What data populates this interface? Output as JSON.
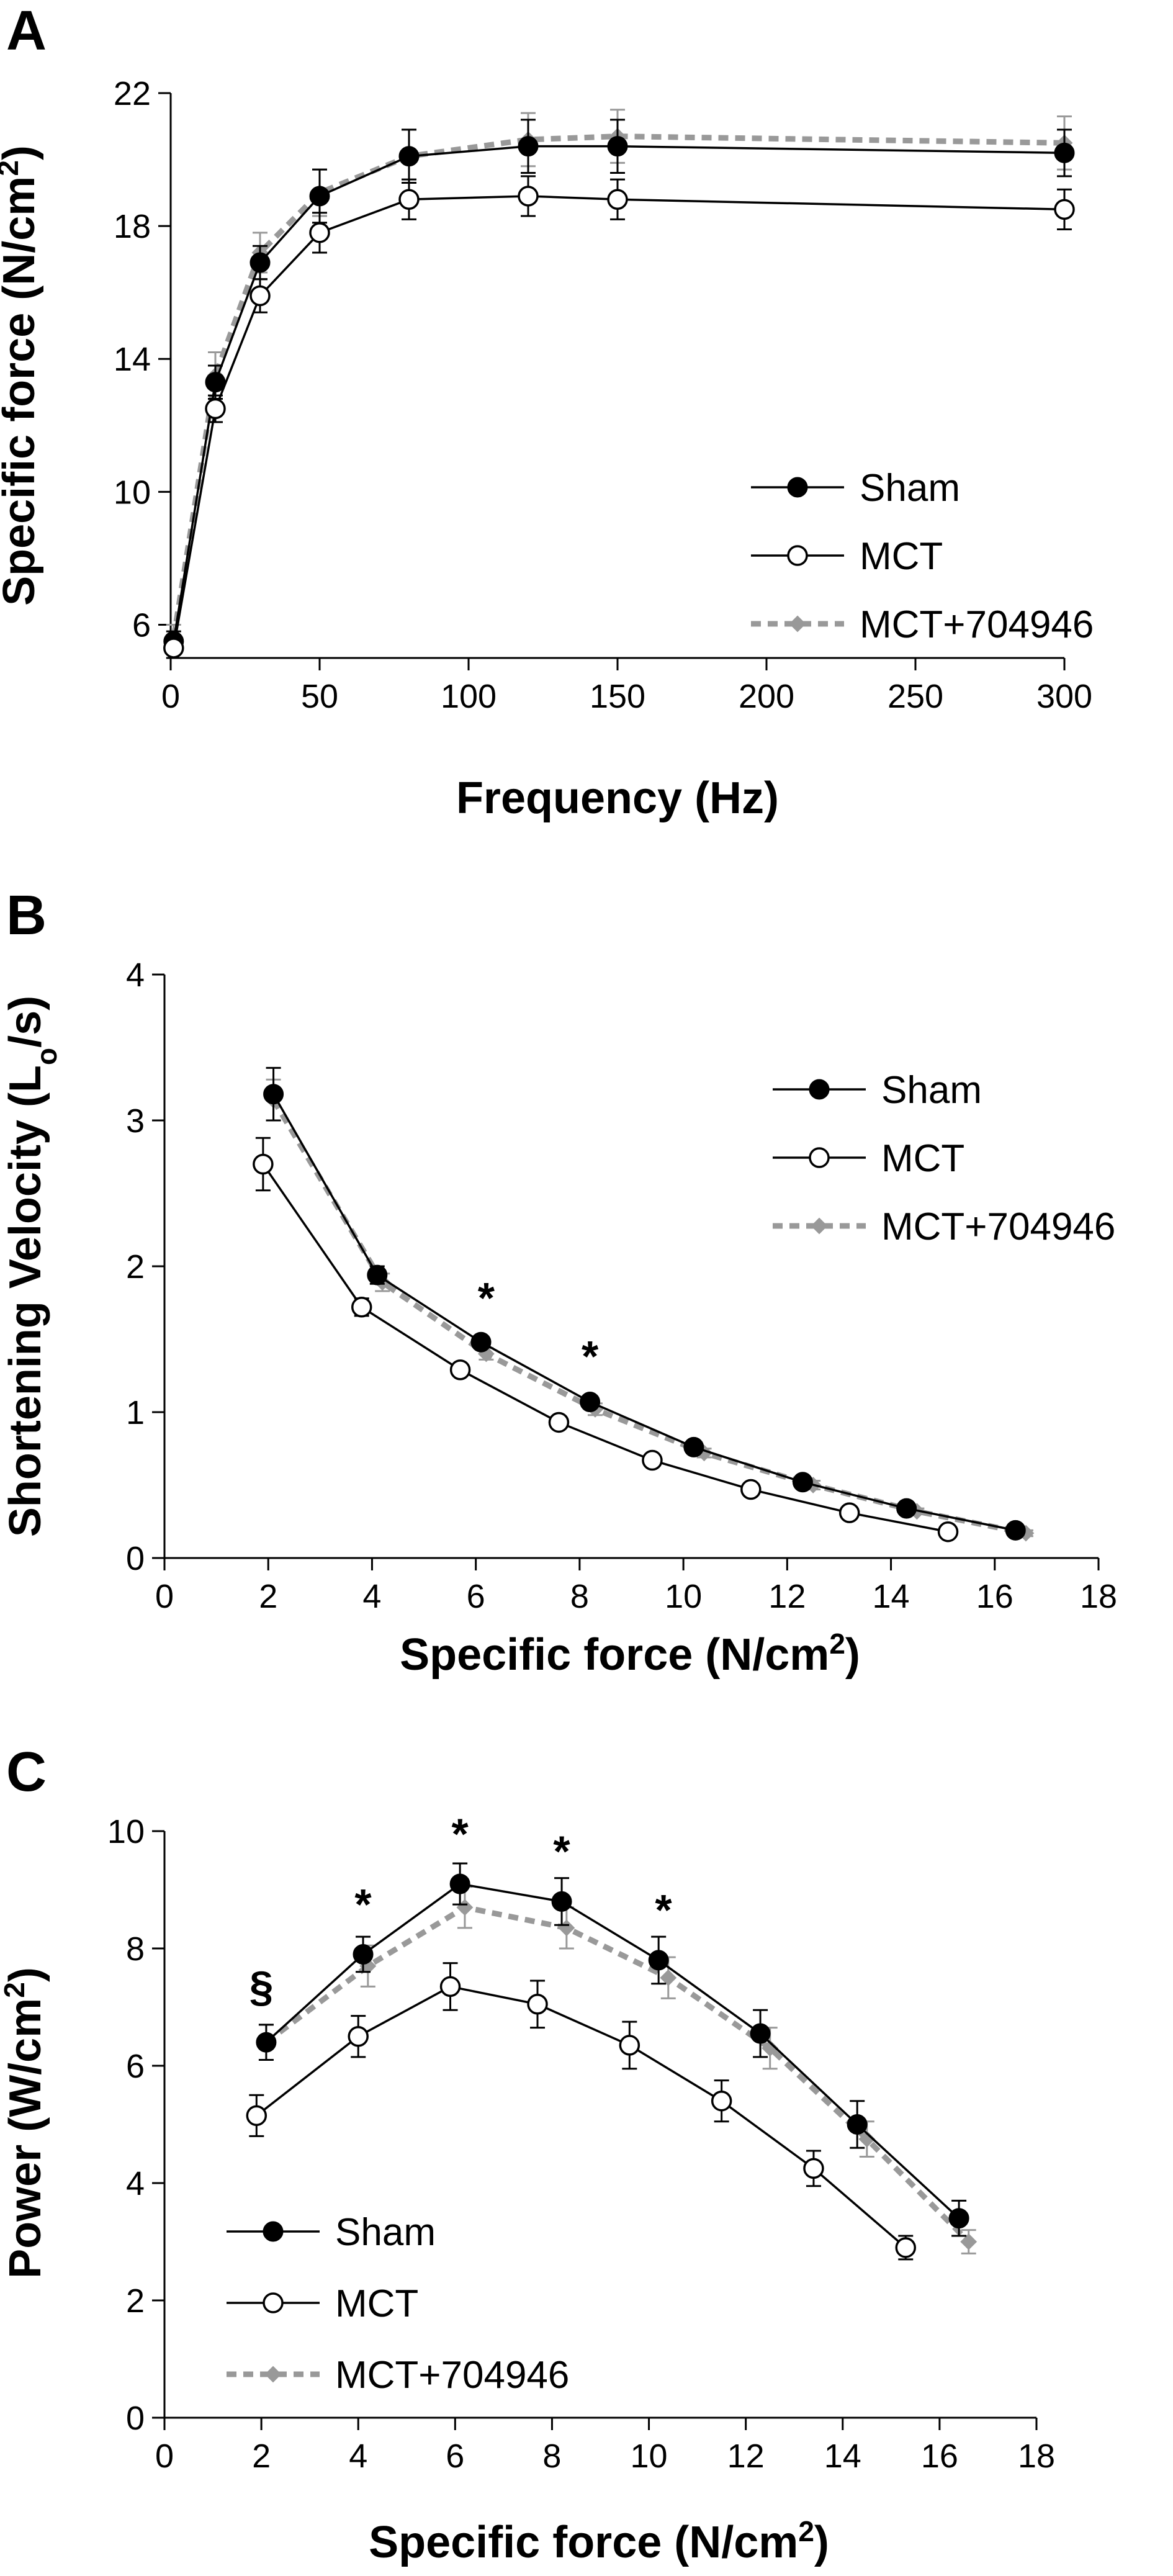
{
  "chart_data": [
    {
      "panel": "A",
      "type": "line",
      "xlabel": "Frequency (Hz)",
      "ylabel": "Specific force (N/cm²)",
      "xlim": [
        0,
        300
      ],
      "ylim": [
        5,
        22
      ],
      "xticks": [
        0,
        50,
        100,
        150,
        200,
        250,
        300
      ],
      "yticks": [
        6,
        10,
        14,
        18,
        22
      ],
      "grid": false,
      "legend": "bottom-right",
      "series": [
        {
          "name": "Sham",
          "style": "filled-circle",
          "color": "#000000",
          "x": [
            1,
            15,
            30,
            50,
            80,
            120,
            150,
            300
          ],
          "y": [
            5.5,
            13.3,
            16.9,
            18.9,
            20.1,
            20.4,
            20.4,
            20.2
          ],
          "err": [
            0.3,
            0.5,
            0.5,
            0.8,
            0.8,
            0.8,
            0.8,
            0.7
          ]
        },
        {
          "name": "MCT",
          "style": "open-circle",
          "color": "#000000",
          "x": [
            1,
            15,
            30,
            50,
            80,
            120,
            150,
            300
          ],
          "y": [
            5.3,
            12.5,
            15.9,
            17.8,
            18.8,
            18.9,
            18.8,
            18.5
          ],
          "err": [
            0.3,
            0.4,
            0.5,
            0.6,
            0.6,
            0.6,
            0.6,
            0.6
          ]
        },
        {
          "name": "MCT+704946",
          "style": "dashed-diamond",
          "color": "#999999",
          "x": [
            1,
            15,
            30,
            50,
            80,
            120,
            150,
            300
          ],
          "y": [
            5.6,
            13.5,
            17.2,
            19.0,
            20.1,
            20.6,
            20.7,
            20.5
          ],
          "err": [
            0.4,
            0.7,
            0.6,
            0.7,
            0.8,
            0.8,
            0.8,
            0.8
          ]
        }
      ],
      "annotations": []
    },
    {
      "panel": "B",
      "type": "line",
      "xlabel": "Specific force (N/cm²)",
      "ylabel": "Shortening Velocity (Lo/s)",
      "xlim": [
        0,
        18
      ],
      "ylim": [
        0,
        4
      ],
      "xticks": [
        0,
        2,
        4,
        6,
        8,
        10,
        12,
        14,
        16,
        18
      ],
      "yticks": [
        0,
        1,
        2,
        3,
        4
      ],
      "grid": false,
      "legend": "top-right",
      "series": [
        {
          "name": "Sham",
          "style": "filled-circle",
          "color": "#000000",
          "x": [
            2.1,
            4.1,
            6.1,
            8.2,
            10.2,
            12.3,
            14.3,
            16.4
          ],
          "y": [
            3.18,
            1.94,
            1.48,
            1.07,
            0.76,
            0.52,
            0.34,
            0.19
          ],
          "err": [
            0.18,
            0.06,
            0.04,
            0.04,
            0.03,
            0.03,
            0.03,
            0.02
          ]
        },
        {
          "name": "MCT",
          "style": "open-circle",
          "color": "#000000",
          "x": [
            1.9,
            3.8,
            5.7,
            7.6,
            9.4,
            11.3,
            13.2,
            15.1
          ],
          "y": [
            2.7,
            1.72,
            1.29,
            0.93,
            0.67,
            0.47,
            0.31,
            0.18
          ],
          "err": [
            0.18,
            0.06,
            0.04,
            0.03,
            0.03,
            0.02,
            0.02,
            0.02
          ]
        },
        {
          "name": "MCT+704946",
          "style": "dashed-diamond",
          "color": "#999999",
          "x": [
            2.1,
            4.2,
            6.2,
            8.3,
            10.4,
            12.5,
            14.5,
            16.6
          ],
          "y": [
            3.14,
            1.89,
            1.4,
            1.02,
            0.72,
            0.5,
            0.32,
            0.17
          ],
          "err": [
            0.14,
            0.06,
            0.04,
            0.04,
            0.03,
            0.03,
            0.02,
            0.02
          ]
        }
      ],
      "annotations": [
        {
          "text": "*",
          "x": 6.2,
          "y": 1.68
        },
        {
          "text": "*",
          "x": 8.2,
          "y": 1.28
        }
      ]
    },
    {
      "panel": "C",
      "type": "line",
      "xlabel": "Specific force (N/cm²)",
      "ylabel": "Power (W/cm²)",
      "xlim": [
        0,
        18
      ],
      "ylim": [
        0,
        10
      ],
      "xticks": [
        0,
        2,
        4,
        6,
        8,
        10,
        12,
        14,
        16,
        18
      ],
      "yticks": [
        0,
        2,
        4,
        6,
        8,
        10
      ],
      "grid": false,
      "legend": "bottom-left",
      "series": [
        {
          "name": "Sham",
          "style": "filled-circle",
          "color": "#000000",
          "x": [
            2.1,
            4.1,
            6.1,
            8.2,
            10.2,
            12.3,
            14.3,
            16.4
          ],
          "y": [
            6.4,
            7.9,
            9.1,
            8.8,
            7.8,
            6.55,
            5.0,
            3.4
          ],
          "err": [
            0.3,
            0.3,
            0.35,
            0.4,
            0.4,
            0.4,
            0.4,
            0.3
          ]
        },
        {
          "name": "MCT",
          "style": "open-circle",
          "color": "#000000",
          "x": [
            1.9,
            4.0,
            5.9,
            7.7,
            9.6,
            11.5,
            13.4,
            15.3
          ],
          "y": [
            5.15,
            6.5,
            7.35,
            7.05,
            6.35,
            5.4,
            4.25,
            2.9
          ],
          "err": [
            0.35,
            0.35,
            0.4,
            0.4,
            0.4,
            0.35,
            0.3,
            0.2
          ]
        },
        {
          "name": "MCT+704946",
          "style": "dashed-diamond",
          "color": "#999999",
          "x": [
            2.1,
            4.2,
            6.2,
            8.3,
            10.4,
            12.5,
            14.5,
            16.6
          ],
          "y": [
            6.4,
            7.7,
            8.7,
            8.35,
            7.5,
            6.3,
            4.75,
            3.0
          ],
          "err": [
            0.3,
            0.35,
            0.35,
            0.35,
            0.35,
            0.35,
            0.3,
            0.2
          ]
        }
      ],
      "annotations": [
        {
          "text": "§",
          "x": 2.0,
          "y": 7.1
        },
        {
          "text": "*",
          "x": 4.1,
          "y": 8.5
        },
        {
          "text": "*",
          "x": 6.1,
          "y": 9.7
        },
        {
          "text": "*",
          "x": 8.2,
          "y": 9.4
        },
        {
          "text": "*",
          "x": 10.3,
          "y": 8.4
        }
      ]
    }
  ],
  "panel_labels": [
    "A",
    "B",
    "C"
  ],
  "colors": {
    "axis": "#000000",
    "sham": "#000000",
    "mct": "#000000",
    "mct_704946": "#999999"
  }
}
